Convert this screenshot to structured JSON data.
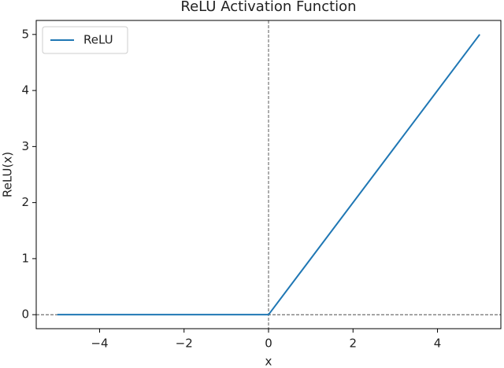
{
  "chart_data": {
    "type": "line",
    "title": "ReLU Activation Function",
    "x_label": "x",
    "y_label": "ReLU(x)",
    "x": [
      -5,
      0,
      5
    ],
    "series": [
      {
        "name": "ReLU",
        "color": "#1f77b4",
        "values": [
          0,
          0,
          5
        ]
      }
    ],
    "xlim": [
      -5.5,
      5.5
    ],
    "ylim": [
      -0.25,
      5.25
    ],
    "xticks": [
      {
        "value": -4,
        "label": "−4"
      },
      {
        "value": -2,
        "label": "−2"
      },
      0,
      2,
      4
    ],
    "yticks": [
      0,
      1,
      2,
      3,
      4,
      5
    ],
    "hlines": [
      0
    ],
    "vlines": [
      0
    ],
    "legend": "upper left",
    "grid": false
  }
}
